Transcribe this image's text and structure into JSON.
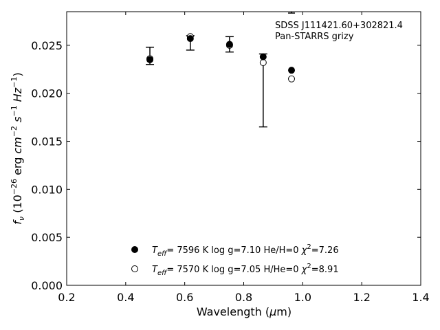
{
  "chart_data": {
    "type": "scatter",
    "title": "",
    "xlabel_main": "Wavelength (",
    "xlabel_mu": "μ",
    "xlabel_tail": "m)",
    "xlim": [
      0.2,
      1.4
    ],
    "ylim": [
      0.0,
      0.0285
    ],
    "x_ticks": [
      "0.2",
      "0.4",
      "0.6",
      "0.8",
      "1.0",
      "1.2",
      "1.4"
    ],
    "x_tick_values": [
      0.2,
      0.4,
      0.6,
      0.8,
      1.0,
      1.2,
      1.4
    ],
    "y_ticks": [
      "0.000",
      "0.005",
      "0.010",
      "0.015",
      "0.020",
      "0.025"
    ],
    "y_tick_values": [
      0.0,
      0.005,
      0.01,
      0.015,
      0.02,
      0.025
    ],
    "grid": false,
    "annotation": {
      "line1": "SDSS J111421.60+302821.4",
      "line2": "Pan-STARRS grizy"
    },
    "observed": {
      "x": [
        0.482,
        0.619,
        0.752,
        0.866,
        0.962
      ],
      "y": [
        0.0236,
        0.0257,
        0.0252,
        0.0232,
        0.0224
      ],
      "err_low": [
        0.023,
        0.0245,
        0.0243,
        0.0165,
        null
      ],
      "err_high": [
        0.0248,
        0.026,
        0.0259,
        0.0241,
        0.0284
      ]
    },
    "series": [
      {
        "marker": "filled-circle",
        "color": "#000000",
        "x": [
          0.482,
          0.619,
          0.752,
          0.866,
          0.962
        ],
        "y": [
          0.0235,
          0.0257,
          0.0251,
          0.0238,
          0.0224
        ],
        "legend": {
          "teff": "7596 K",
          "logg": "log g=7.10",
          "comp": "He/H=0",
          "chi2": "=7.26"
        }
      },
      {
        "marker": "open-circle",
        "color": "#000000",
        "x": [
          0.482,
          0.619,
          0.752,
          0.866,
          0.962
        ],
        "y": [
          0.0236,
          0.0259,
          0.025,
          0.0232,
          0.0215
        ],
        "legend": {
          "teff": "7570 K",
          "logg": "log g=7.05",
          "comp": "H/He=0",
          "chi2": "=8.91"
        }
      }
    ]
  }
}
